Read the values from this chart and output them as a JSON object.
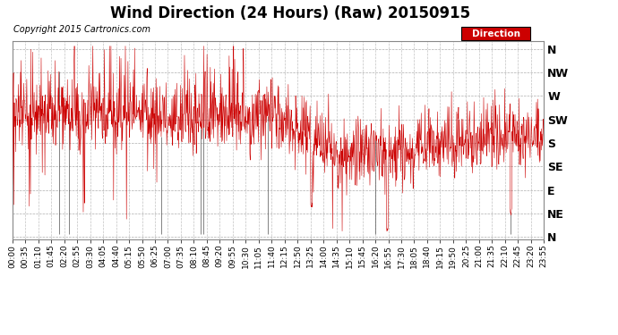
{
  "title": "Wind Direction (24 Hours) (Raw) 20150915",
  "copyright": "Copyright 2015 Cartronics.com",
  "legend_label": "Direction",
  "legend_bg": "#cc0000",
  "legend_text_color": "#ffffff",
  "line_color": "#cc0000",
  "dark_line_color": "#555555",
  "bg_color": "#ffffff",
  "plot_bg_color": "#ffffff",
  "grid_color": "#999999",
  "ytick_labels": [
    "N",
    "NW",
    "W",
    "SW",
    "S",
    "SE",
    "E",
    "NE",
    "N"
  ],
  "ytick_values": [
    360,
    315,
    270,
    225,
    180,
    135,
    90,
    45,
    0
  ],
  "ylim": [
    -5,
    375
  ],
  "xtick_labels": [
    "00:00",
    "00:35",
    "01:10",
    "01:45",
    "02:20",
    "02:55",
    "03:30",
    "04:05",
    "04:40",
    "05:15",
    "05:50",
    "06:25",
    "07:00",
    "07:35",
    "08:10",
    "08:45",
    "09:20",
    "09:55",
    "10:30",
    "11:05",
    "11:40",
    "12:15",
    "12:50",
    "13:25",
    "14:00",
    "14:35",
    "15:10",
    "15:45",
    "16:20",
    "16:55",
    "17:30",
    "18:05",
    "18:40",
    "19:15",
    "19:50",
    "20:25",
    "21:00",
    "21:35",
    "22:10",
    "22:45",
    "23:20",
    "23:55"
  ],
  "title_fontsize": 12,
  "copyright_fontsize": 7,
  "axis_fontsize": 6.5,
  "ytick_fontsize": 9,
  "base_sw_value": 225,
  "base_s_value": 195,
  "base_se_value": 155,
  "seed": 1234
}
